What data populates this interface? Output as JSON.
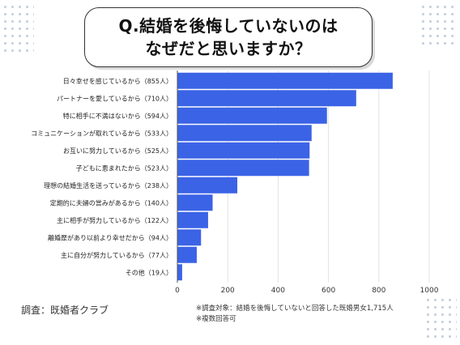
{
  "title_lines": [
    "Q.結婚を後悔していないのは",
    "なぜだと思いますか？"
  ],
  "footer": {
    "source": "調査：既婚者クラブ",
    "note1": "※調査対象：結婚を後悔していないと回答した既婚男女1,715人",
    "note2": "※複数回答可"
  },
  "chart_data": {
    "type": "bar",
    "orientation": "horizontal",
    "title": "Q.結婚を後悔していないのはなぜだと思いますか？",
    "categories": [
      "日々幸せを感じているから（855人）",
      "パートナーを愛しているから（710人）",
      "特に相手に不満はないから（594人）",
      "コミュニケーションが取れているから（533人）",
      "お互いに努力しているから（525人）",
      "子どもに恵まれたから（523人）",
      "理想の結婚生活を送っているから（238人）",
      "定期的に夫婦の営みがあるから（140人）",
      "主に相手が努力しているから（122人）",
      "離婚歴があり以前より幸せだから（94人）",
      "主に自分が努力しているから（77人）",
      "その他（19人）"
    ],
    "values": [
      855,
      710,
      594,
      533,
      525,
      523,
      238,
      140,
      122,
      94,
      77,
      19
    ],
    "xlim": [
      0,
      1000
    ],
    "xticks": [
      0,
      200,
      400,
      600,
      800,
      1000
    ],
    "bar_color": "#3b63e6",
    "grid": true
  }
}
